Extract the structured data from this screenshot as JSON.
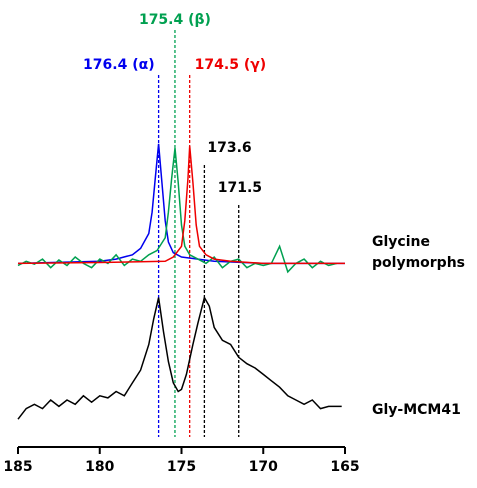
{
  "chart_data": {
    "type": "line",
    "xlim": [
      185,
      165
    ],
    "ylim": [
      0,
      100
    ],
    "xticks": [
      185,
      180,
      175,
      170,
      165
    ],
    "reference_lines": [
      {
        "value": 176.4,
        "label": "176.4 (α)",
        "color": "#0000ee"
      },
      {
        "value": 175.4,
        "label": "175.4 (β)",
        "color": "#00a050"
      },
      {
        "value": 174.5,
        "label": "174.5 (γ)",
        "color": "#ee0000"
      },
      {
        "value": 173.6,
        "label": "173.6",
        "color": "#000000"
      },
      {
        "value": 171.5,
        "label": "171.5",
        "color": "#000000"
      }
    ],
    "series": [
      {
        "color": "#0000ee",
        "x": [
          185,
          182,
          180,
          179,
          178,
          177.5,
          177,
          176.8,
          176.6,
          176.4,
          176.2,
          176.0,
          175.8,
          175.5,
          175,
          174,
          173,
          170,
          165
        ],
        "values": [
          43,
          43.3,
          43.5,
          44,
          45,
          46.5,
          50,
          55,
          63,
          71,
          62,
          53,
          48,
          45.5,
          44.5,
          44,
          43.5,
          43,
          43
        ]
      },
      {
        "color": "#00a050",
        "x": [
          185,
          184.5,
          184,
          183.5,
          183,
          182.5,
          182,
          181.5,
          181,
          180.5,
          180,
          179.5,
          179,
          178.5,
          178,
          177.5,
          177,
          176.5,
          176,
          175.8,
          175.6,
          175.4,
          175.2,
          175,
          174.8,
          174.5,
          174,
          173.5,
          173,
          172.5,
          172,
          171.5,
          171,
          170.5,
          170,
          169.5,
          169,
          168.5,
          168,
          167.5,
          167,
          166.5,
          166,
          165.5
        ],
        "values": [
          42.5,
          43.5,
          42.8,
          44,
          42,
          43.8,
          42.5,
          44.5,
          43,
          42,
          44,
          43,
          45,
          42.5,
          44,
          43.5,
          45,
          46,
          49,
          55,
          63,
          70,
          62,
          52,
          47,
          45,
          44,
          43,
          44.5,
          42,
          43.5,
          44,
          42,
          43,
          42.5,
          43,
          47,
          41,
          43,
          44,
          42,
          43.5,
          42.5,
          43
        ]
      },
      {
        "color": "#ee0000",
        "x": [
          185,
          180,
          176,
          175.5,
          175,
          174.8,
          174.6,
          174.5,
          174.3,
          174.1,
          173.9,
          173.5,
          173,
          172,
          170,
          165
        ],
        "values": [
          43,
          43.2,
          43.5,
          44.5,
          47,
          53,
          63,
          70.5,
          62,
          52,
          47,
          45,
          44,
          43.5,
          43,
          43
        ]
      },
      {
        "color": "#000000",
        "x": [
          185,
          184.5,
          184,
          183.5,
          183,
          182.5,
          182,
          181.5,
          181,
          180.5,
          180,
          179.5,
          179,
          178.5,
          178,
          177.5,
          177,
          176.7,
          176.4,
          176.1,
          175.8,
          175.5,
          175.2,
          175,
          174.7,
          174.3,
          174,
          173.6,
          173.3,
          173,
          172.5,
          172,
          171.5,
          171,
          170.5,
          170,
          169.5,
          169,
          168.5,
          168,
          167.5,
          167,
          166.5,
          166,
          165.5,
          165.2
        ],
        "values": [
          6.5,
          9,
          10,
          9,
          11,
          9.5,
          11,
          10,
          12,
          10.5,
          12,
          11.5,
          13,
          12,
          15,
          18,
          24,
          30,
          35,
          27,
          20,
          15,
          13,
          13.5,
          17,
          24,
          29,
          35,
          33,
          28,
          25,
          24,
          21,
          19.5,
          18.5,
          17,
          15.5,
          14,
          12,
          11,
          10,
          11,
          9,
          9.5,
          9.5,
          9.5
        ]
      }
    ],
    "side_labels": [
      [
        "Glycine",
        "polymorphs"
      ],
      [
        "Gly-MCM41"
      ]
    ]
  }
}
